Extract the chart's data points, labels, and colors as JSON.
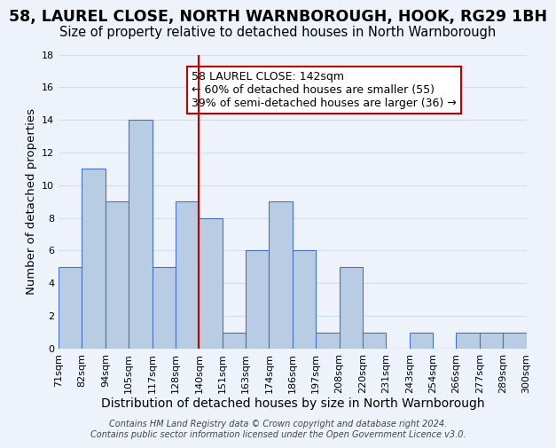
{
  "title": "58, LAUREL CLOSE, NORTH WARNBOROUGH, HOOK, RG29 1BH",
  "subtitle": "Size of property relative to detached houses in North Warnborough",
  "xlabel": "Distribution of detached houses by size in North Warnborough",
  "ylabel": "Number of detached properties",
  "footer_line1": "Contains HM Land Registry data © Crown copyright and database right 2024.",
  "footer_line2": "Contains public sector information licensed under the Open Government Licence v3.0.",
  "bin_labels": [
    "71sqm",
    "82sqm",
    "94sqm",
    "105sqm",
    "117sqm",
    "128sqm",
    "140sqm",
    "151sqm",
    "163sqm",
    "174sqm",
    "186sqm",
    "197sqm",
    "208sqm",
    "220sqm",
    "231sqm",
    "243sqm",
    "254sqm",
    "266sqm",
    "277sqm",
    "289sqm",
    "300sqm"
  ],
  "bar_heights": [
    5,
    11,
    9,
    14,
    5,
    9,
    8,
    1,
    6,
    9,
    6,
    1,
    5,
    1,
    0,
    1,
    0,
    1,
    1,
    1
  ],
  "bar_color": "#b8cce4",
  "bar_edge_color": "#4472c4",
  "grid_color": "#d0dff0",
  "vline_color": "#c00000",
  "annotation_box_edge_color": "#c00000",
  "annotation_line1": "58 LAUREL CLOSE: 142sqm",
  "annotation_line2": "← 60% of detached houses are smaller (55)",
  "annotation_line3": "39% of semi-detached houses are larger (36) →",
  "ylim": [
    0,
    18
  ],
  "yticks": [
    0,
    2,
    4,
    6,
    8,
    10,
    12,
    14,
    16,
    18
  ],
  "title_fontsize": 12.5,
  "subtitle_fontsize": 10.5,
  "xlabel_fontsize": 10,
  "ylabel_fontsize": 9.5,
  "tick_fontsize": 8,
  "annotation_fontsize": 9,
  "footer_fontsize": 7,
  "background_color": "#eef2fa"
}
